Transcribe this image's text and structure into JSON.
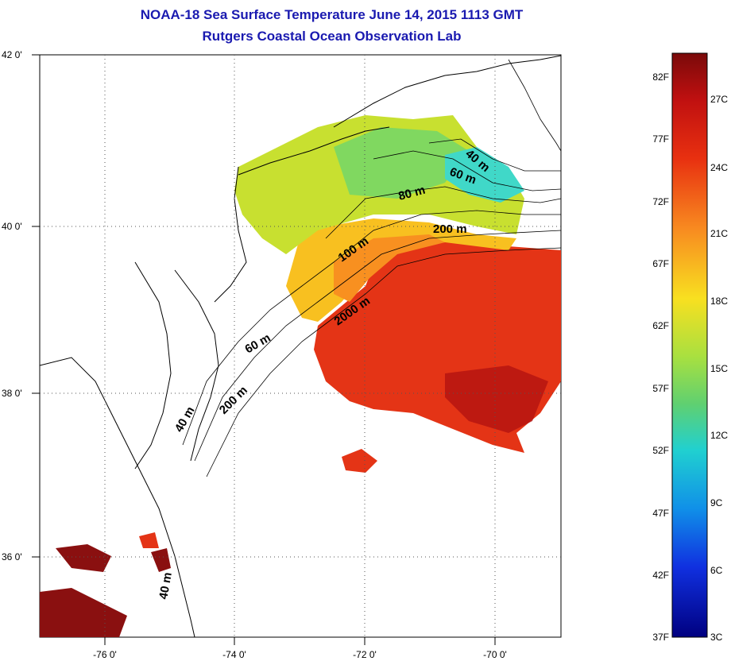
{
  "title": {
    "line1": "NOAA-18 Sea Surface Temperature June 14, 2015 1113 GMT",
    "line2": "Rutgers Coastal Ocean Observation Lab"
  },
  "map": {
    "lat_labels": [
      "42 0'",
      "40 0'",
      "38 0'",
      "36 0'"
    ],
    "lon_labels": [
      "-76 0'",
      "-74 0'",
      "-72 0'",
      "-70 0'"
    ],
    "depth_contours": [
      "40 m",
      "60 m",
      "80 m",
      "200 m",
      "100 m",
      "2000 m",
      "60 m",
      "200 m",
      "40 m",
      "40 m"
    ]
  },
  "colorbar": {
    "fahrenheit_labels": [
      "82F",
      "77F",
      "72F",
      "67F",
      "62F",
      "57F",
      "52F",
      "47F",
      "42F",
      "37F"
    ],
    "celsius_labels": [
      "27C",
      "24C",
      "21C",
      "18C",
      "15C",
      "12C",
      "9C",
      "6C",
      "3C"
    ],
    "colors": {
      "top": "#7a0a0a",
      "red": "#e02010",
      "orange": "#f89020",
      "yellow": "#f0e020",
      "green": "#70d060",
      "cyan": "#20d0d8",
      "blue": "#1040e0",
      "bottom": "#000080"
    }
  }
}
